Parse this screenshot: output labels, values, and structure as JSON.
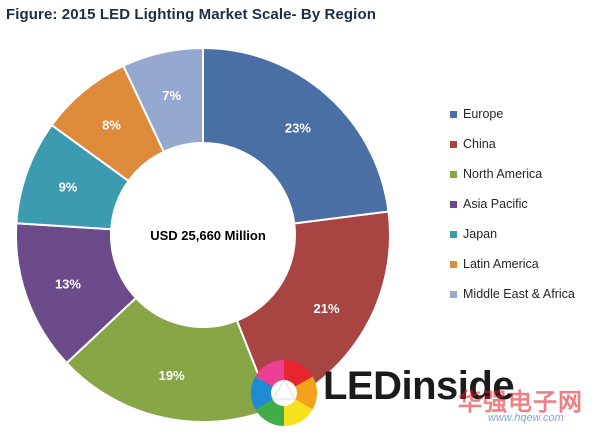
{
  "chart_data": {
    "type": "pie",
    "title": "Figure: 2015 LED Lighting Market Scale- By Region",
    "center_label": "USD 25,660 Million",
    "categories": [
      "Europe",
      "China",
      "North America",
      "Asia Pacific",
      "Japan",
      "Latin America",
      "Middle East & Africa"
    ],
    "values": [
      23,
      21,
      19,
      13,
      9,
      8,
      7
    ],
    "labels": [
      "23%",
      "21%",
      "19%",
      "13%",
      "9%",
      "8%",
      "7%"
    ],
    "colors": [
      "#4a6fa5",
      "#a84442",
      "#88a646",
      "#6b4b8a",
      "#3d9bb0",
      "#de8a3b",
      "#94a8d0"
    ],
    "legend_position": "right"
  },
  "logo": {
    "text": "LEDinside"
  },
  "watermark": {
    "text": "华强电子网",
    "url": "www.hqew.com"
  }
}
